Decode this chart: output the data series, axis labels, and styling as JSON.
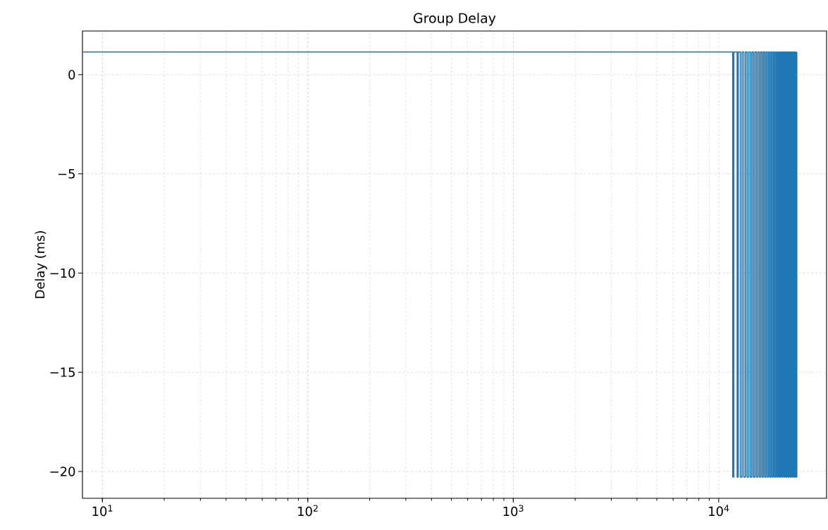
{
  "chart_data": {
    "type": "line",
    "title": "Group Delay",
    "ylabel": "Delay (ms)",
    "log": "x",
    "grid": true,
    "xlim": [
      8,
      33500
    ],
    "ylim": [
      -21.35,
      2.2
    ],
    "xticks": [
      {
        "value": 10,
        "label": "10$^{1}$"
      },
      {
        "value": 100,
        "label": "10$^{2}$"
      },
      {
        "value": 1000,
        "label": "10$^{3}$"
      },
      {
        "value": 10000,
        "label": "10$^{4}$"
      }
    ],
    "yticks": [
      {
        "value": 0,
        "label": "0"
      },
      {
        "value": -5,
        "label": "−5"
      },
      {
        "value": -10,
        "label": "−10"
      },
      {
        "value": -15,
        "label": "−15"
      },
      {
        "value": -20,
        "label": "−20"
      }
    ],
    "series": [
      {
        "color": "#1f77b4",
        "x": [
          8,
          11700,
          11700,
          11850,
          11850,
          12300,
          12300,
          12450,
          12450,
          12750,
          12750,
          13000,
          13000,
          13250,
          13250,
          13500,
          13500,
          13750,
          13750,
          14000,
          14000,
          14250,
          14250,
          14500,
          14500,
          14750,
          14750,
          15000,
          15000,
          15250,
          15250,
          15500,
          15500,
          15750,
          15750,
          16000,
          16000,
          16250,
          16250,
          16500,
          16500,
          16750,
          16750,
          17000,
          17000,
          17250,
          17250,
          17500,
          17500,
          17750,
          17750,
          18000,
          18000,
          18250,
          18250,
          18500,
          18500,
          18750,
          18750,
          19000,
          19000,
          19250,
          19250,
          19500,
          19500,
          19750,
          19750,
          20000,
          20000,
          20250,
          20250,
          20500,
          20500,
          20750,
          20750,
          21000,
          21000,
          21250,
          21250,
          21500,
          21500,
          21750,
          21750,
          22000,
          22000,
          22250,
          22250,
          22500,
          22500,
          22750,
          22750,
          23000,
          23000,
          23250,
          23250,
          23500,
          23500,
          23750,
          23750,
          24000,
          24000
        ],
        "values": [
          1.14,
          1.14,
          -20.28,
          -20.28,
          1.14,
          1.14,
          -20.28,
          -20.28,
          1.14,
          1.14,
          -20.28,
          -20.28,
          1.14,
          1.14,
          -20.28,
          -20.28,
          1.14,
          1.14,
          -20.28,
          -20.28,
          1.14,
          1.14,
          -20.28,
          -20.28,
          1.14,
          1.14,
          -20.28,
          -20.28,
          1.14,
          1.14,
          -20.28,
          -20.28,
          1.14,
          1.14,
          -20.28,
          -20.28,
          1.14,
          1.14,
          -20.28,
          -20.28,
          1.14,
          1.14,
          -20.28,
          -20.28,
          1.14,
          1.14,
          -20.28,
          -20.28,
          1.14,
          1.14,
          -20.28,
          -20.28,
          1.14,
          1.14,
          -20.28,
          -20.28,
          1.14,
          1.14,
          -20.28,
          -20.28,
          1.14,
          1.14,
          -20.28,
          -20.28,
          1.14,
          1.14,
          -20.28,
          -20.28,
          1.14,
          1.14,
          -20.28,
          -20.28,
          1.14,
          1.14,
          -20.28,
          -20.28,
          1.14,
          1.14,
          -20.28,
          -20.28,
          1.14,
          1.14,
          -20.28,
          -20.28,
          1.14,
          1.14,
          -20.28,
          -20.28,
          1.14,
          1.14,
          -20.28,
          -20.28,
          1.14,
          1.14,
          -20.28,
          -20.28,
          1.14,
          1.14,
          -20.28,
          -20.28,
          1.14
        ]
      }
    ]
  }
}
